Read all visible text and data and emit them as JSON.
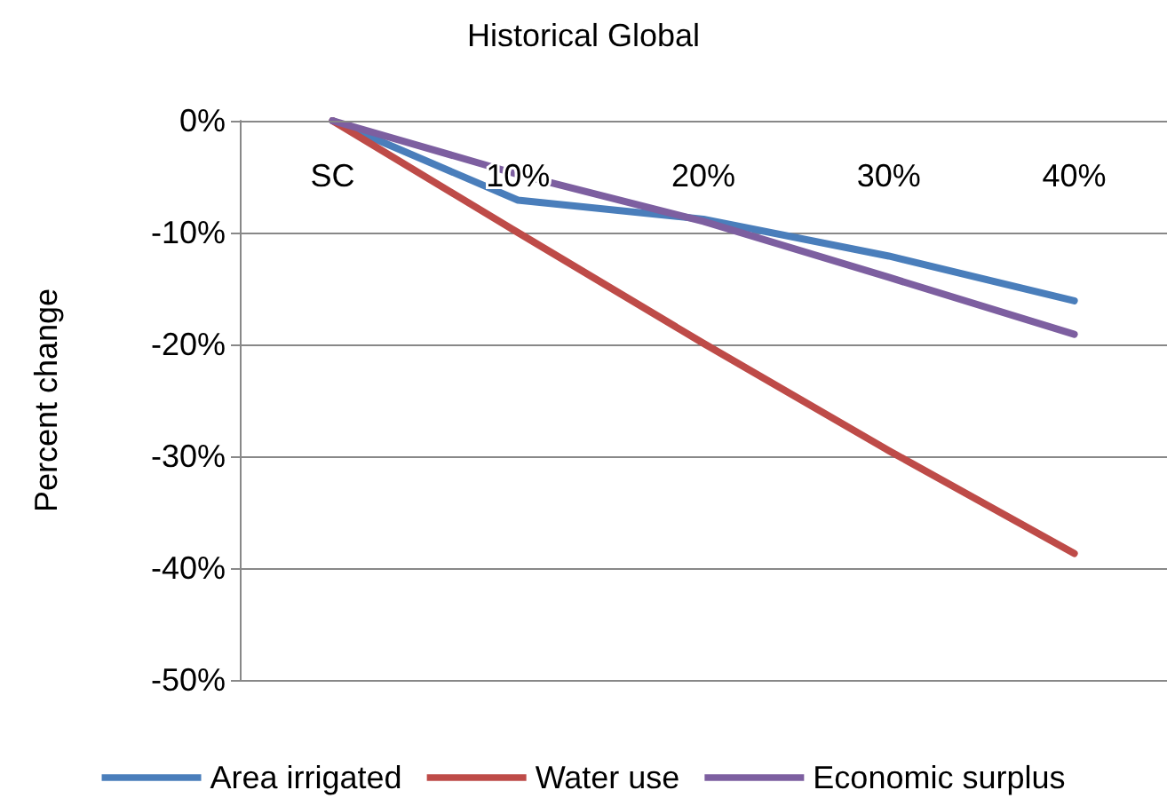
{
  "chart_data": {
    "type": "line",
    "title": "Historical Global",
    "ylabel": "Percent change",
    "categories": [
      "SC",
      "10%",
      "20%",
      "30%",
      "40%"
    ],
    "series": [
      {
        "name": "Area irrigated",
        "color": "#4a7ebb",
        "values": [
          0,
          -7.1,
          -8.8,
          -12.1,
          -16.1
        ]
      },
      {
        "name": "Water use",
        "color": "#be4b48",
        "values": [
          0,
          -10,
          -19.9,
          -29.5,
          -38.7
        ]
      },
      {
        "name": "Economic surplus",
        "color": "#7d5fa0",
        "values": [
          0,
          -4.8,
          -9,
          -14,
          -19.1
        ]
      }
    ],
    "ylim": [
      -50,
      0
    ],
    "yticks": [
      {
        "value": 0,
        "label": "0%"
      },
      {
        "value": -10,
        "label": "-10%"
      },
      {
        "value": -20,
        "label": "-20%"
      },
      {
        "value": -30,
        "label": "-30%"
      },
      {
        "value": -40,
        "label": "-40%"
      },
      {
        "value": -50,
        "label": "-50%"
      }
    ],
    "grid": "y",
    "legend": "bottom",
    "marker": "none",
    "line_style": "solid"
  }
}
